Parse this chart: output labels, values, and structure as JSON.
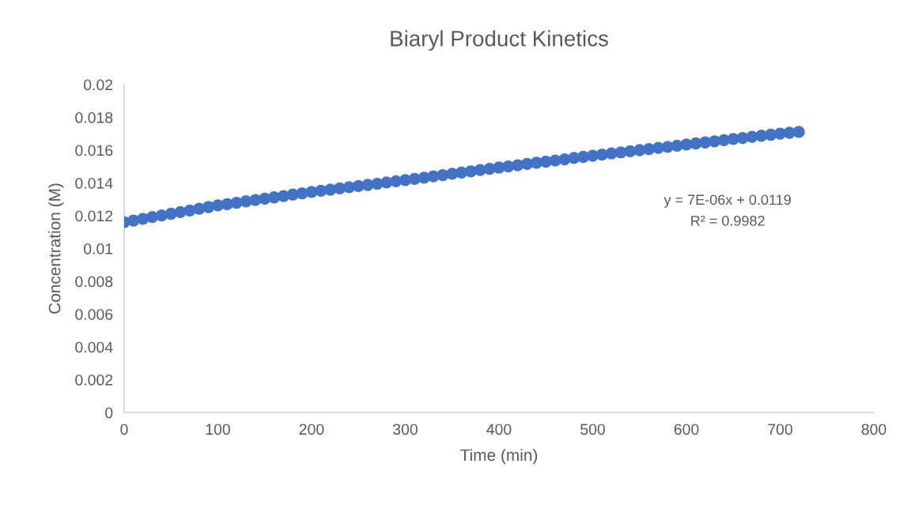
{
  "chart_data": {
    "type": "scatter",
    "title": "Biaryl Product Kinetics",
    "xlabel": "Time (min)",
    "ylabel": "Concentration (M)",
    "x": [
      0,
      10,
      20,
      30,
      40,
      50,
      60,
      70,
      80,
      90,
      100,
      110,
      120,
      130,
      140,
      150,
      160,
      170,
      180,
      190,
      200,
      210,
      220,
      230,
      240,
      250,
      260,
      270,
      280,
      290,
      300,
      310,
      320,
      330,
      340,
      350,
      360,
      370,
      380,
      390,
      400,
      410,
      420,
      430,
      440,
      450,
      460,
      470,
      480,
      490,
      500,
      510,
      520,
      530,
      540,
      550,
      560,
      570,
      580,
      590,
      600,
      610,
      620,
      630,
      640,
      650,
      660,
      670,
      680,
      690,
      700,
      710,
      720
    ],
    "series": [
      {
        "color": "#4472c4",
        "values": [
          0.01161,
          0.01171,
          0.01181,
          0.01192,
          0.01202,
          0.01212,
          0.01222,
          0.01232,
          0.01243,
          0.01253,
          0.01263,
          0.01271,
          0.01279,
          0.01288,
          0.01296,
          0.01304,
          0.01312,
          0.0132,
          0.01329,
          0.01337,
          0.01345,
          0.01352,
          0.01359,
          0.01367,
          0.01374,
          0.01381,
          0.01388,
          0.01395,
          0.01403,
          0.0141,
          0.01417,
          0.01425,
          0.01432,
          0.0144,
          0.01448,
          0.01456,
          0.01463,
          0.01471,
          0.01479,
          0.01486,
          0.01494,
          0.01501,
          0.01508,
          0.01516,
          0.01523,
          0.0153,
          0.01537,
          0.01544,
          0.01552,
          0.01559,
          0.01566,
          0.01573,
          0.0158,
          0.01586,
          0.01593,
          0.016,
          0.01607,
          0.01614,
          0.0162,
          0.01627,
          0.01634,
          0.01641,
          0.01647,
          0.01654,
          0.01661,
          0.01668,
          0.01674,
          0.01681,
          0.01688,
          0.01694,
          0.01701,
          0.01706,
          0.01711
        ]
      }
    ],
    "xlim": [
      0,
      800
    ],
    "xticks": [
      0,
      100,
      200,
      300,
      400,
      500,
      600,
      700,
      800
    ],
    "ylim": [
      0,
      0.02
    ],
    "yticks": [
      0,
      0.002,
      0.004,
      0.006,
      0.008,
      0.01,
      0.012,
      0.014,
      0.016,
      0.018,
      0.02
    ],
    "annotations": [
      "y = 7E-06x + 0.0119",
      "R² = 0.9982"
    ],
    "marker": "circle",
    "grid": false,
    "legend": false
  }
}
